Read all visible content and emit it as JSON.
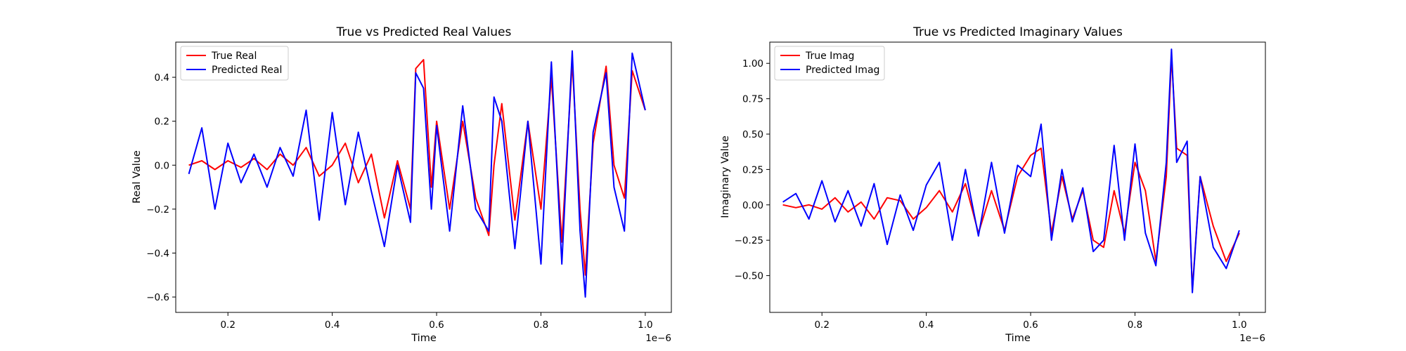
{
  "chart_data": [
    {
      "type": "line",
      "title": "True vs Predicted Real Values",
      "xlabel": "Time",
      "ylabel": "Real Value",
      "x_offset_label": "1e−6",
      "xlim": [
        0.1,
        1.05
      ],
      "ylim": [
        -0.67,
        0.56
      ],
      "xticks": [
        0.2,
        0.4,
        0.6,
        0.8,
        1.0
      ],
      "xtick_labels": [
        "0.2",
        "0.4",
        "0.6",
        "0.8",
        "1.0"
      ],
      "yticks": [
        -0.6,
        -0.4,
        -0.2,
        0.0,
        0.2,
        0.4
      ],
      "ytick_labels": [
        "−0.6",
        "−0.4",
        "−0.2",
        "0.0",
        "0.2",
        "0.4"
      ],
      "grid": false,
      "legend_position": "top-left",
      "x": [
        0.125,
        0.15,
        0.175,
        0.2,
        0.225,
        0.25,
        0.275,
        0.3,
        0.325,
        0.35,
        0.375,
        0.4,
        0.425,
        0.45,
        0.475,
        0.5,
        0.525,
        0.55,
        0.56,
        0.575,
        0.59,
        0.6,
        0.625,
        0.65,
        0.675,
        0.7,
        0.71,
        0.725,
        0.75,
        0.775,
        0.8,
        0.82,
        0.84,
        0.86,
        0.875,
        0.885,
        0.9,
        0.925,
        0.94,
        0.96,
        0.975,
        1.0
      ],
      "series": [
        {
          "name": "True Real",
          "color": "#ff0000",
          "values": [
            0.0,
            0.02,
            -0.02,
            0.02,
            -0.01,
            0.03,
            -0.02,
            0.05,
            0.0,
            0.08,
            -0.05,
            0.0,
            0.1,
            -0.08,
            0.05,
            -0.24,
            0.02,
            -0.2,
            0.44,
            0.48,
            -0.1,
            0.2,
            -0.2,
            0.2,
            -0.15,
            -0.32,
            0.0,
            0.28,
            -0.25,
            0.2,
            -0.2,
            0.4,
            -0.35,
            0.47,
            -0.2,
            -0.5,
            0.1,
            0.45,
            0.0,
            -0.15,
            0.43,
            0.25
          ]
        },
        {
          "name": "Predicted Real",
          "color": "#0000ff",
          "values": [
            -0.04,
            0.17,
            -0.2,
            0.1,
            -0.08,
            0.05,
            -0.1,
            0.08,
            -0.05,
            0.25,
            -0.25,
            0.24,
            -0.18,
            0.15,
            -0.12,
            -0.37,
            0.0,
            -0.26,
            0.42,
            0.35,
            -0.2,
            0.18,
            -0.3,
            0.27,
            -0.2,
            -0.3,
            0.31,
            0.2,
            -0.38,
            0.2,
            -0.45,
            0.47,
            -0.45,
            0.52,
            -0.3,
            -0.6,
            0.15,
            0.42,
            -0.1,
            -0.3,
            0.51,
            0.25
          ]
        }
      ]
    },
    {
      "type": "line",
      "title": "True vs Predicted Imaginary Values",
      "xlabel": "Time",
      "ylabel": "Imaginary Value",
      "x_offset_label": "1e−6",
      "xlim": [
        0.1,
        1.05
      ],
      "ylim": [
        -0.76,
        1.15
      ],
      "xticks": [
        0.2,
        0.4,
        0.6,
        0.8,
        1.0
      ],
      "xtick_labels": [
        "0.2",
        "0.4",
        "0.6",
        "0.8",
        "1.0"
      ],
      "yticks": [
        -0.5,
        -0.25,
        0.0,
        0.25,
        0.5,
        0.75,
        1.0
      ],
      "ytick_labels": [
        "−0.50",
        "−0.25",
        "0.00",
        "0.25",
        "0.50",
        "0.75",
        "1.00"
      ],
      "grid": false,
      "legend_position": "top-left",
      "x": [
        0.125,
        0.15,
        0.175,
        0.2,
        0.225,
        0.25,
        0.275,
        0.3,
        0.325,
        0.35,
        0.375,
        0.4,
        0.425,
        0.45,
        0.475,
        0.5,
        0.525,
        0.55,
        0.575,
        0.6,
        0.62,
        0.64,
        0.66,
        0.68,
        0.7,
        0.72,
        0.74,
        0.76,
        0.78,
        0.8,
        0.82,
        0.84,
        0.86,
        0.87,
        0.88,
        0.9,
        0.91,
        0.925,
        0.95,
        0.975,
        1.0
      ],
      "series": [
        {
          "name": "True Imag",
          "color": "#ff0000",
          "values": [
            0.0,
            -0.02,
            0.0,
            -0.03,
            0.05,
            -0.05,
            0.02,
            -0.1,
            0.05,
            0.03,
            -0.1,
            -0.02,
            0.1,
            -0.05,
            0.15,
            -0.2,
            0.1,
            -0.18,
            0.2,
            0.35,
            0.4,
            -0.2,
            0.2,
            -0.1,
            0.1,
            -0.25,
            -0.3,
            0.1,
            -0.2,
            0.3,
            0.1,
            -0.4,
            0.2,
            1.05,
            0.4,
            0.35,
            -0.6,
            0.2,
            -0.15,
            -0.4,
            -0.2
          ]
        },
        {
          "name": "Predicted Imag",
          "color": "#0000ff",
          "values": [
            0.02,
            0.08,
            -0.1,
            0.17,
            -0.12,
            0.1,
            -0.15,
            0.15,
            -0.28,
            0.07,
            -0.18,
            0.14,
            0.3,
            -0.25,
            0.25,
            -0.22,
            0.3,
            -0.2,
            0.28,
            0.2,
            0.57,
            -0.25,
            0.25,
            -0.12,
            0.12,
            -0.33,
            -0.25,
            0.42,
            -0.25,
            0.43,
            -0.2,
            -0.43,
            0.3,
            1.1,
            0.3,
            0.45,
            -0.62,
            0.2,
            -0.3,
            -0.45,
            -0.18
          ]
        }
      ]
    }
  ]
}
